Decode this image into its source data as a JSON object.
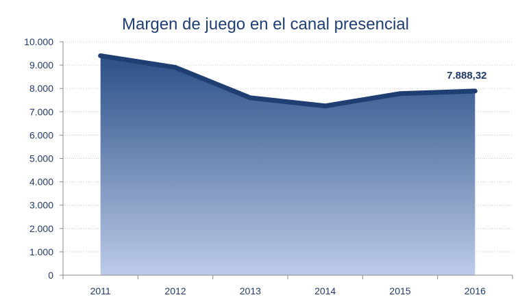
{
  "chart_data": {
    "type": "area",
    "title": "Margen de juego en el canal presencial",
    "xlabel": "",
    "ylabel": "",
    "categories": [
      "2011",
      "2012",
      "2013",
      "2014",
      "2015",
      "2016"
    ],
    "series": [
      {
        "values": [
          9400,
          8900,
          7600,
          7250,
          7780,
          7888.32
        ]
      }
    ],
    "ylim": [
      0,
      10000
    ],
    "yticks": [
      0,
      1000,
      2000,
      3000,
      4000,
      5000,
      6000,
      7000,
      8000,
      9000,
      10000
    ],
    "ytick_labels": [
      "0",
      "1.000",
      "2.000",
      "3.000",
      "4.000",
      "5.000",
      "6.000",
      "7.000",
      "8.000",
      "9.000",
      "10.000"
    ],
    "annotations": [
      {
        "category": "2016",
        "text": "7.888,32"
      }
    ],
    "grid": true,
    "legend": "none",
    "colors": {
      "line": "#1f3f73",
      "fill_top": "#2a4f86",
      "fill_bottom": "#bccbe8",
      "grid": "#c8c8c8",
      "axis": "#8a8a8a"
    }
  }
}
